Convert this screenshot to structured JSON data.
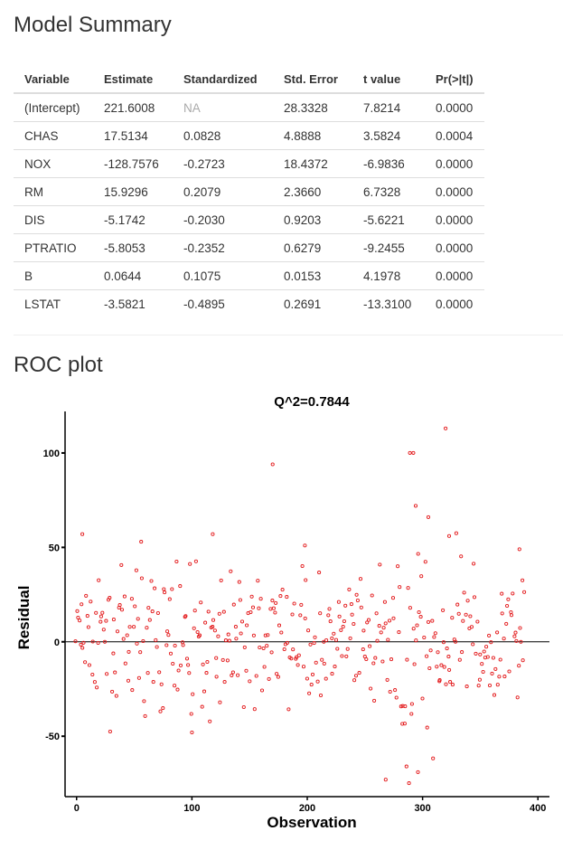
{
  "summary": {
    "title": "Model Summary",
    "columns": [
      "Variable",
      "Estimate",
      "Standardized",
      "Std. Error",
      "t value",
      "Pr(>|t|)"
    ],
    "rows": [
      [
        "(Intercept)",
        "221.6008",
        "NA",
        "28.3328",
        "7.8214",
        "0.0000"
      ],
      [
        "CHAS",
        "17.5134",
        "0.0828",
        "4.8888",
        "3.5824",
        "0.0004"
      ],
      [
        "NOX",
        "-128.7576",
        "-0.2723",
        "18.4372",
        "-6.9836",
        "0.0000"
      ],
      [
        "RM",
        "15.9296",
        "0.2079",
        "2.3660",
        "6.7328",
        "0.0000"
      ],
      [
        "DIS",
        "-5.1742",
        "-0.2030",
        "0.9203",
        "-5.6221",
        "0.0000"
      ],
      [
        "PTRATIO",
        "-5.8053",
        "-0.2352",
        "0.6279",
        "-9.2455",
        "0.0000"
      ],
      [
        "B",
        "0.0644",
        "0.1075",
        "0.0153",
        "4.1978",
        "0.0000"
      ],
      [
        "LSTAT",
        "-3.5821",
        "-0.4895",
        "0.2691",
        "-13.3100",
        "0.0000"
      ]
    ]
  },
  "roc": {
    "title": "ROC plot"
  },
  "chart_data": {
    "type": "scatter",
    "title": "Q^2=0.7844",
    "xlabel": "Observation",
    "ylabel": "Residual",
    "xlim": [
      -10,
      410
    ],
    "ylim": [
      -82,
      122
    ],
    "xticks": [
      0,
      100,
      200,
      300,
      400
    ],
    "yticks": [
      -50,
      0,
      50,
      100
    ],
    "reference_line": 0,
    "grid": false,
    "point_color": "#e31a1c",
    "n_points": 405,
    "highlighted_points": [
      {
        "x": 5,
        "y": 57
      },
      {
        "x": 56,
        "y": 53
      },
      {
        "x": 118,
        "y": 57
      },
      {
        "x": 170,
        "y": 94
      },
      {
        "x": 198,
        "y": 51
      },
      {
        "x": 289,
        "y": 100
      },
      {
        "x": 292,
        "y": 100
      },
      {
        "x": 294,
        "y": 72
      },
      {
        "x": 320,
        "y": 113
      },
      {
        "x": 323,
        "y": 56
      },
      {
        "x": 305,
        "y": 66
      },
      {
        "x": 384,
        "y": 49
      },
      {
        "x": 100,
        "y": -48
      },
      {
        "x": 268,
        "y": -73
      },
      {
        "x": 286,
        "y": -66
      },
      {
        "x": 296,
        "y": -69
      }
    ]
  }
}
